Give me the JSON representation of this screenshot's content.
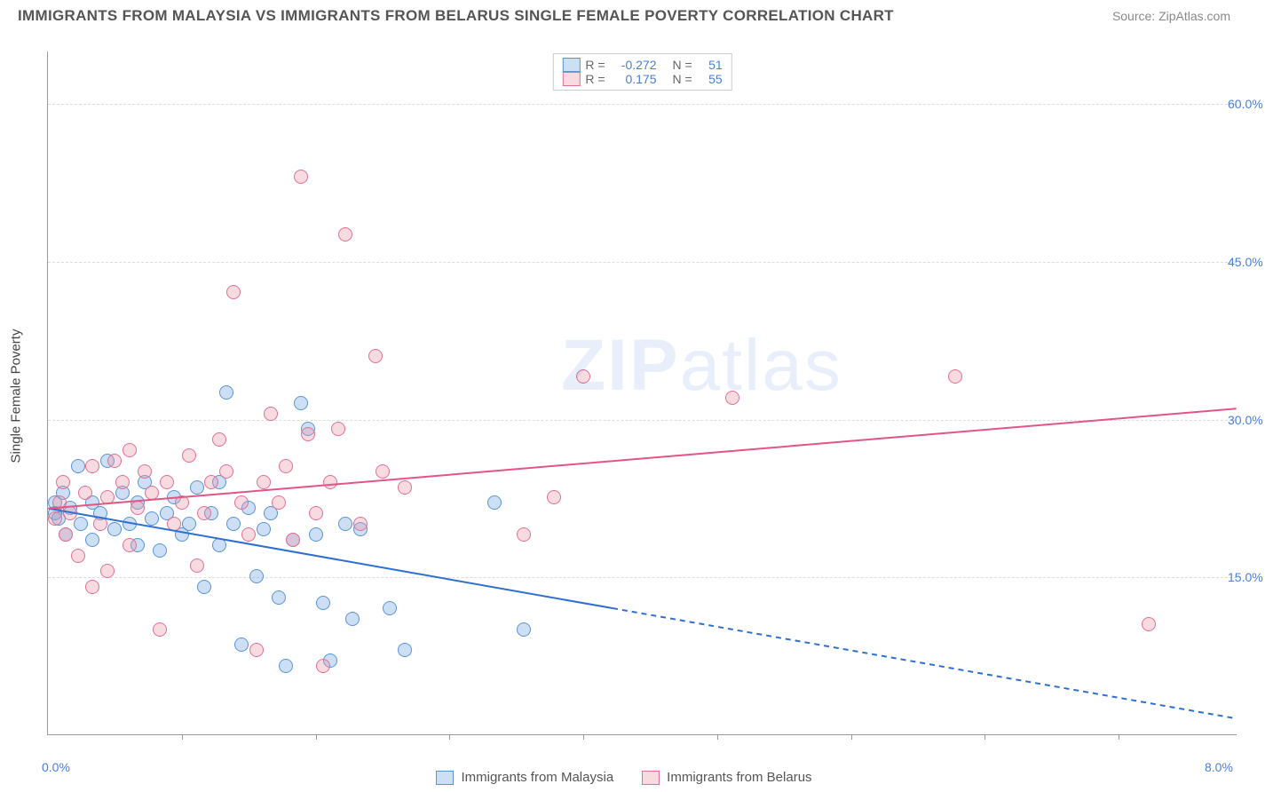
{
  "header": {
    "title": "IMMIGRANTS FROM MALAYSIA VS IMMIGRANTS FROM BELARUS SINGLE FEMALE POVERTY CORRELATION CHART",
    "source": "Source: ZipAtlas.com"
  },
  "watermark": {
    "zip": "ZIP",
    "atlas": "atlas"
  },
  "chart": {
    "type": "scatter",
    "y_axis_title": "Single Female Poverty",
    "xlim": [
      0,
      8.0
    ],
    "ylim": [
      0,
      65.0
    ],
    "x_origin_label": "0.0%",
    "x_max_label": "8.0%",
    "y_ticks": [
      {
        "value": 15.0,
        "label": "15.0%"
      },
      {
        "value": 30.0,
        "label": "30.0%"
      },
      {
        "value": 45.0,
        "label": "45.0%"
      },
      {
        "value": 60.0,
        "label": "60.0%"
      }
    ],
    "x_tick_positions": [
      0.9,
      1.8,
      2.7,
      3.6,
      4.5,
      5.4,
      6.3,
      7.2
    ],
    "grid_color": "#dddddd",
    "background": "#ffffff",
    "axis_label_color": "#4a7ddb",
    "point_radius": 8,
    "series": [
      {
        "name": "Immigrants from Malaysia",
        "fill": "rgba(109,163,224,0.35)",
        "stroke": "#5a94d6",
        "trend": {
          "color": "#2f6fd0",
          "width": 2,
          "solid_from": [
            0,
            21.5
          ],
          "solid_to": [
            3.8,
            12.0
          ],
          "dash_to": [
            8.0,
            1.5
          ]
        },
        "points": [
          [
            0.05,
            22.0
          ],
          [
            0.05,
            21.0
          ],
          [
            0.07,
            20.5
          ],
          [
            0.1,
            23.0
          ],
          [
            0.12,
            19.0
          ],
          [
            0.15,
            21.5
          ],
          [
            0.2,
            25.5
          ],
          [
            0.22,
            20.0
          ],
          [
            0.3,
            22.0
          ],
          [
            0.3,
            18.5
          ],
          [
            0.35,
            21.0
          ],
          [
            0.4,
            26.0
          ],
          [
            0.45,
            19.5
          ],
          [
            0.5,
            23.0
          ],
          [
            0.55,
            20.0
          ],
          [
            0.6,
            18.0
          ],
          [
            0.6,
            22.0
          ],
          [
            0.65,
            24.0
          ],
          [
            0.7,
            20.5
          ],
          [
            0.75,
            17.5
          ],
          [
            0.8,
            21.0
          ],
          [
            0.85,
            22.5
          ],
          [
            0.9,
            19.0
          ],
          [
            0.95,
            20.0
          ],
          [
            1.0,
            23.5
          ],
          [
            1.05,
            14.0
          ],
          [
            1.1,
            21.0
          ],
          [
            1.15,
            18.0
          ],
          [
            1.15,
            24.0
          ],
          [
            1.2,
            32.5
          ],
          [
            1.25,
            20.0
          ],
          [
            1.3,
            8.5
          ],
          [
            1.35,
            21.5
          ],
          [
            1.4,
            15.0
          ],
          [
            1.45,
            19.5
          ],
          [
            1.5,
            21.0
          ],
          [
            1.55,
            13.0
          ],
          [
            1.6,
            6.5
          ],
          [
            1.65,
            18.5
          ],
          [
            1.7,
            31.5
          ],
          [
            1.75,
            29.0
          ],
          [
            1.8,
            19.0
          ],
          [
            1.85,
            12.5
          ],
          [
            1.9,
            7.0
          ],
          [
            2.0,
            20.0
          ],
          [
            2.05,
            11.0
          ],
          [
            2.1,
            19.5
          ],
          [
            2.3,
            12.0
          ],
          [
            2.4,
            8.0
          ],
          [
            3.2,
            10.0
          ],
          [
            3.0,
            22.0
          ]
        ]
      },
      {
        "name": "Immigrants from Belarus",
        "fill": "rgba(236,148,170,0.35)",
        "stroke": "#e27095",
        "trend": {
          "color": "#e25584",
          "width": 2,
          "solid_from": [
            0,
            21.5
          ],
          "solid_to": [
            8.0,
            31.0
          ]
        },
        "points": [
          [
            0.05,
            20.5
          ],
          [
            0.08,
            22.0
          ],
          [
            0.1,
            24.0
          ],
          [
            0.12,
            19.0
          ],
          [
            0.15,
            21.0
          ],
          [
            0.2,
            17.0
          ],
          [
            0.25,
            23.0
          ],
          [
            0.3,
            25.5
          ],
          [
            0.35,
            20.0
          ],
          [
            0.4,
            22.5
          ],
          [
            0.4,
            15.5
          ],
          [
            0.45,
            26.0
          ],
          [
            0.5,
            24.0
          ],
          [
            0.55,
            18.0
          ],
          [
            0.6,
            21.5
          ],
          [
            0.65,
            25.0
          ],
          [
            0.7,
            23.0
          ],
          [
            0.75,
            10.0
          ],
          [
            0.8,
            24.0
          ],
          [
            0.85,
            20.0
          ],
          [
            0.9,
            22.0
          ],
          [
            0.95,
            26.5
          ],
          [
            1.0,
            16.0
          ],
          [
            1.05,
            21.0
          ],
          [
            1.1,
            24.0
          ],
          [
            1.15,
            28.0
          ],
          [
            1.2,
            25.0
          ],
          [
            1.25,
            42.0
          ],
          [
            1.3,
            22.0
          ],
          [
            1.35,
            19.0
          ],
          [
            1.4,
            8.0
          ],
          [
            1.45,
            24.0
          ],
          [
            1.5,
            30.5
          ],
          [
            1.55,
            22.0
          ],
          [
            1.6,
            25.5
          ],
          [
            1.65,
            18.5
          ],
          [
            1.7,
            53.0
          ],
          [
            1.75,
            28.5
          ],
          [
            1.8,
            21.0
          ],
          [
            1.85,
            6.5
          ],
          [
            1.9,
            24.0
          ],
          [
            1.95,
            29.0
          ],
          [
            2.0,
            47.5
          ],
          [
            2.1,
            20.0
          ],
          [
            2.2,
            36.0
          ],
          [
            2.25,
            25.0
          ],
          [
            2.4,
            23.5
          ],
          [
            3.2,
            19.0
          ],
          [
            3.4,
            22.5
          ],
          [
            3.6,
            34.0
          ],
          [
            4.6,
            32.0
          ],
          [
            6.1,
            34.0
          ],
          [
            7.4,
            10.5
          ],
          [
            0.3,
            14.0
          ],
          [
            0.55,
            27.0
          ]
        ]
      }
    ]
  },
  "stats_legend": {
    "rows": [
      {
        "series_idx": 0,
        "r_label": "R =",
        "r_value": "-0.272",
        "n_label": "N =",
        "n_value": "51"
      },
      {
        "series_idx": 1,
        "r_label": "R =",
        "r_value": "0.175",
        "n_label": "N =",
        "n_value": "55"
      }
    ],
    "label_color": "#666666",
    "value_color": "#4a7ddb"
  },
  "bottom_legend": {
    "items": [
      {
        "series_idx": 0,
        "label": "Immigrants from Malaysia"
      },
      {
        "series_idx": 1,
        "label": "Immigrants from Belarus"
      }
    ]
  }
}
